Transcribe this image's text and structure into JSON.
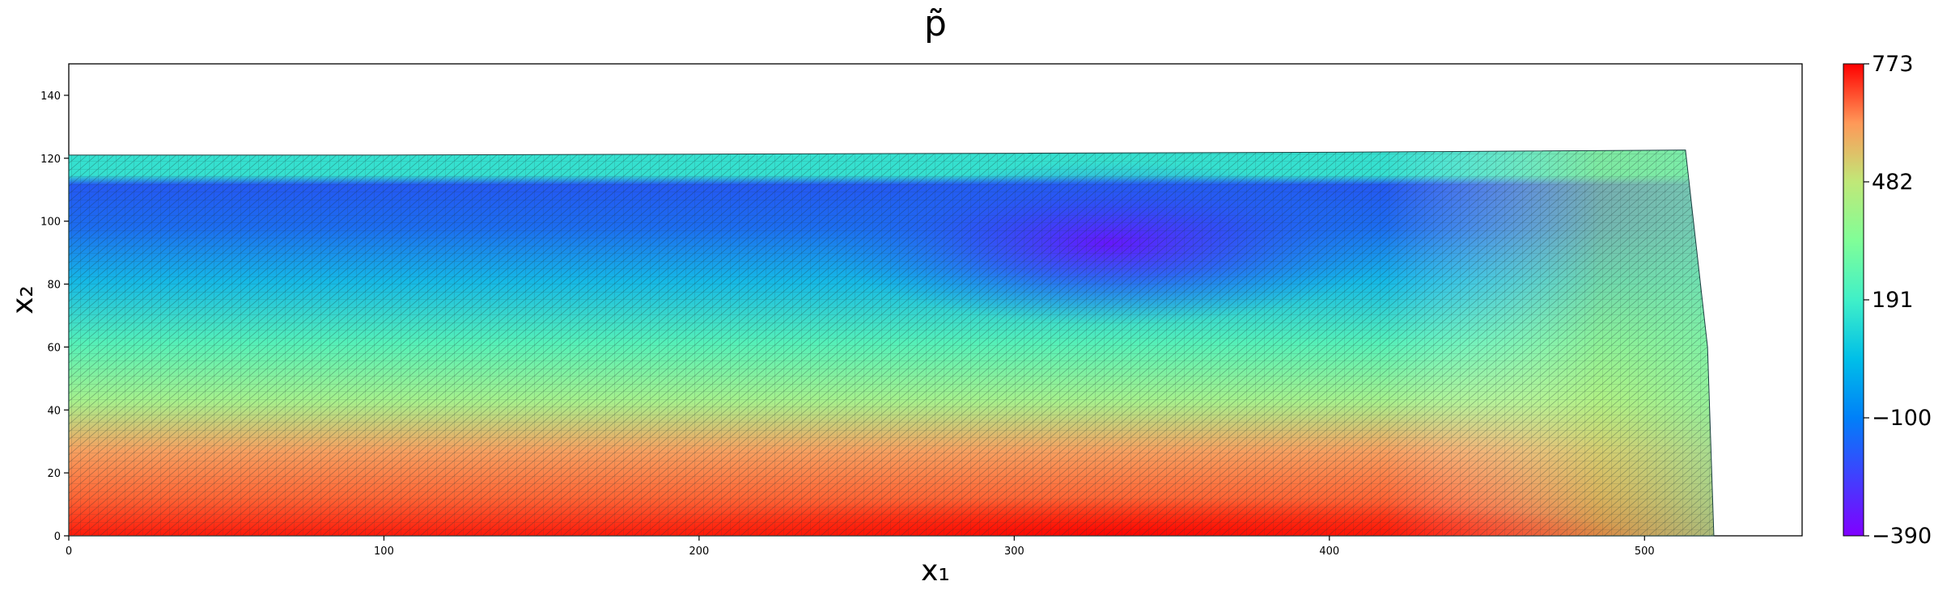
{
  "chart_data": {
    "type": "heatmap",
    "title": "p̃",
    "xlabel": "x₁",
    "ylabel": "x₂",
    "xlim": [
      0,
      550
    ],
    "ylim": [
      0,
      150
    ],
    "x_ticks": [
      0,
      100,
      200,
      300,
      400,
      500
    ],
    "y_ticks": [
      0,
      20,
      40,
      60,
      80,
      100,
      120,
      140
    ],
    "colormap": "rainbow",
    "colorbar": {
      "min": -390,
      "max": 773,
      "ticks": [
        "773",
        "482",
        "191",
        "−100",
        "−390"
      ]
    },
    "domain_outline": {
      "top_surface": [
        [
          0,
          121
        ],
        [
          100,
          121
        ],
        [
          200,
          121.3
        ],
        [
          300,
          121.6
        ],
        [
          400,
          121.9
        ],
        [
          513,
          122.6
        ]
      ],
      "right_edge": [
        [
          513,
          122.6
        ],
        [
          520,
          60
        ],
        [
          522,
          0
        ]
      ],
      "bottom": [
        [
          0,
          0
        ],
        [
          522,
          0
        ]
      ]
    },
    "field_features": {
      "low_pressure_min": {
        "x": 330,
        "y": 105,
        "value": -390
      },
      "high_pressure_band": {
        "y": 0,
        "value": 773
      },
      "mesh": "triangular"
    }
  }
}
